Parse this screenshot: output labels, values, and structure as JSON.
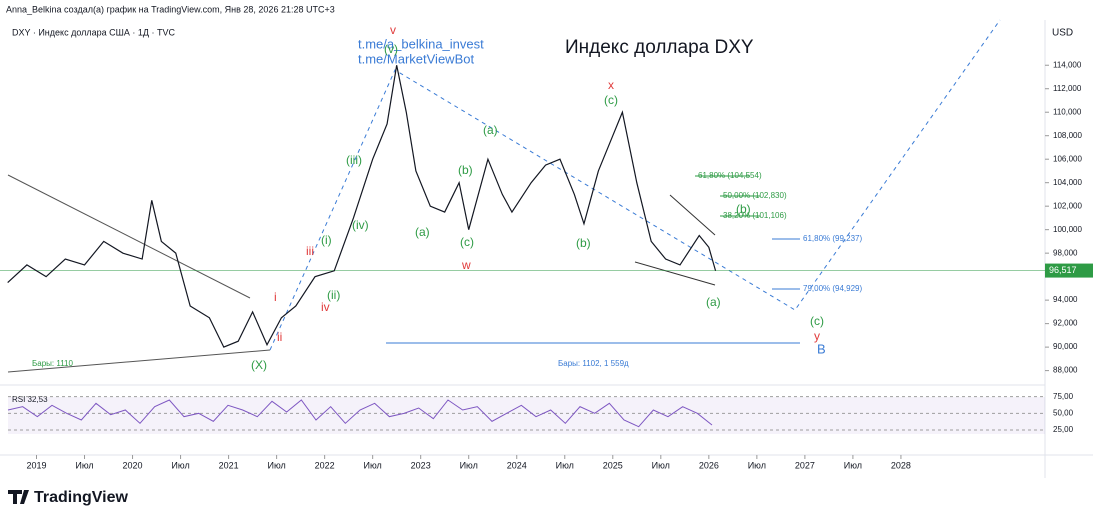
{
  "header": {
    "author_line": "Anna_Belkina создал(а) график на TradingView.com, Янв 28, 2026 21:28 UTC+3",
    "symbol": "DXY · Индекс доллара США · 1Д · TVC",
    "currency": "USD",
    "logo": "TradingView"
  },
  "annotations": {
    "link1": "t.me/a_belkina_invest",
    "link2": "t.me/MarketViewBot",
    "title": "Индекс доллара DXY",
    "bars_left": "Бары: 1110",
    "bars_range": "Бары: 1102, 1 559д",
    "rsi_label": "RSI 32,53"
  },
  "waves": {
    "v_red": "v",
    "v": "(v)",
    "iii": "(iii)",
    "iv": "(iv)",
    "i": "(i)",
    "ii": "(ii)",
    "iii_red": "iii",
    "i_red": "i",
    "ii_red": "ii",
    "iv_red": "iv",
    "a1": "(a)",
    "b1": "(b)",
    "c1": "(c)",
    "w": "w",
    "a2": "(a)",
    "b2": "(b)",
    "c2": "(c)",
    "x": "x",
    "b3": "(b)",
    "a3": "(a)",
    "c3": "(c)",
    "y": "y",
    "B": "B",
    "X": "(X)"
  },
  "fib": {
    "f1": "61,80% (104,554)",
    "f2": "50,00% (102,830)",
    "f3": "38,20% (101,106)",
    "f4": "61,80% (99,237)",
    "f5": "79,00% (94,929)"
  },
  "chart_data": {
    "type": "line",
    "color": "#131722",
    "x": [
      2018.7,
      2018.9,
      2019.1,
      2019.3,
      2019.5,
      2019.7,
      2019.9,
      2020.1,
      2020.2,
      2020.3,
      2020.45,
      2020.6,
      2020.8,
      2020.95,
      2021.1,
      2021.25,
      2021.4,
      2021.55,
      2021.7,
      2021.9,
      2022.1,
      2022.3,
      2022.5,
      2022.65,
      2022.75,
      2022.85,
      2022.95,
      2023.1,
      2023.25,
      2023.4,
      2023.5,
      2023.7,
      2023.85,
      2023.95,
      2024.15,
      2024.3,
      2024.45,
      2024.6,
      2024.7,
      2024.85,
      2025.0,
      2025.1,
      2025.25,
      2025.4,
      2025.55,
      2025.7,
      2025.9,
      2026.0,
      2026.07
    ],
    "values": [
      95.5,
      97,
      96,
      97.5,
      97,
      99,
      98,
      97.5,
      102.5,
      99,
      98,
      93.5,
      92.5,
      90,
      90.5,
      93,
      90.2,
      92.5,
      93.5,
      96,
      96.5,
      101,
      106,
      109,
      114,
      110,
      105,
      102,
      101.5,
      104,
      100,
      106,
      103,
      101.5,
      104,
      105.5,
      106,
      103,
      100.5,
      105,
      108,
      110,
      104,
      99,
      97.5,
      97,
      99.5,
      98.5,
      96.5
    ],
    "xlim": [
      2018.62,
      2029.5
    ],
    "ylim": [
      87.2,
      117
    ],
    "xticks": [
      {
        "value": 2019,
        "label": "2019"
      },
      {
        "value": 2019.5,
        "label": "Июл"
      },
      {
        "value": 2020,
        "label": "2020"
      },
      {
        "value": 2020.5,
        "label": "Июл"
      },
      {
        "value": 2021,
        "label": "2021"
      },
      {
        "value": 2021.5,
        "label": "Июл"
      },
      {
        "value": 2022,
        "label": "2022"
      },
      {
        "value": 2022.5,
        "label": "Июл"
      },
      {
        "value": 2023,
        "label": "2023"
      },
      {
        "value": 2023.5,
        "label": "Июл"
      },
      {
        "value": 2024,
        "label": "2024"
      },
      {
        "value": 2024.5,
        "label": "Июл"
      },
      {
        "value": 2025,
        "label": "2025"
      },
      {
        "value": 2025.5,
        "label": "Июл"
      },
      {
        "value": 2026,
        "label": "2026"
      },
      {
        "value": 2026.5,
        "label": "Июл"
      },
      {
        "value": 2027,
        "label": "2027"
      },
      {
        "value": 2027.5,
        "label": "Июл"
      },
      {
        "value": 2028,
        "label": "2028"
      }
    ],
    "yticks": [
      {
        "value": 88,
        "label": "88,000"
      },
      {
        "value": 90,
        "label": "90,000"
      },
      {
        "value": 92,
        "label": "92,000"
      },
      {
        "value": 94,
        "label": "94,000"
      },
      {
        "value": 98,
        "label": "98,000"
      },
      {
        "value": 100,
        "label": "100,000"
      },
      {
        "value": 102,
        "label": "102,000"
      },
      {
        "value": 104,
        "label": "104,000"
      },
      {
        "value": 106,
        "label": "106,000"
      },
      {
        "value": 108,
        "label": "108,000"
      },
      {
        "value": 110,
        "label": "110,000"
      },
      {
        "value": 112,
        "label": "112,000"
      },
      {
        "value": 114,
        "label": "114,000"
      }
    ],
    "last_price": {
      "value": 96.517,
      "label": "96,517"
    },
    "rsi": {
      "values": [
        55,
        60,
        45,
        62,
        50,
        40,
        65,
        48,
        55,
        35,
        60,
        70,
        45,
        50,
        38,
        62,
        55,
        45,
        68,
        52,
        70,
        40,
        60,
        35,
        55,
        65,
        45,
        50,
        58,
        42,
        70,
        55,
        60,
        38,
        50,
        62,
        45,
        55,
        35,
        60,
        50,
        65,
        40,
        30,
        55,
        45,
        60,
        50,
        32.53
      ],
      "ylim": [
        10,
        85
      ],
      "yticks": [
        {
          "value": 25,
          "label": "25,00"
        },
        {
          "value": 50,
          "label": "50,00"
        },
        {
          "value": 75,
          "label": "75,00"
        }
      ]
    }
  }
}
